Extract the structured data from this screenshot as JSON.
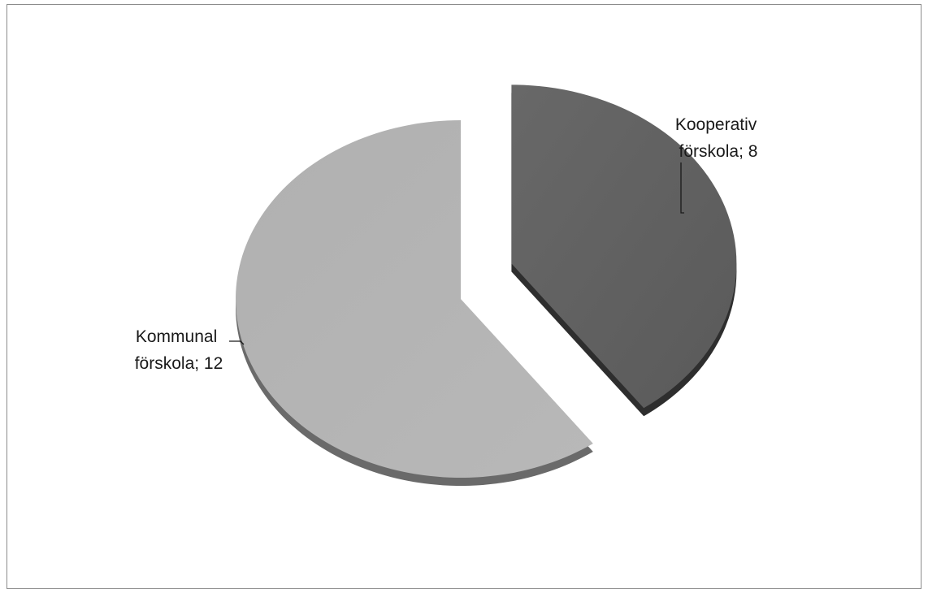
{
  "chart_data": {
    "type": "pie",
    "title": "",
    "slices": [
      {
        "label_line1": "Kooperativ",
        "label_line2": "förskola; 8",
        "category": "Kooperativ förskola",
        "value": 8,
        "color": "#626262",
        "side_color": "#2e2e2e",
        "exploded": true
      },
      {
        "label_line1": "Kommunal",
        "label_line2": "förskola; 12",
        "category": "Kommunal förskola",
        "value": 12,
        "color": "#b4b4b4",
        "side_color": "#6a6a6a",
        "exploded": false
      }
    ],
    "style": "3d-pie",
    "legend": "none"
  }
}
